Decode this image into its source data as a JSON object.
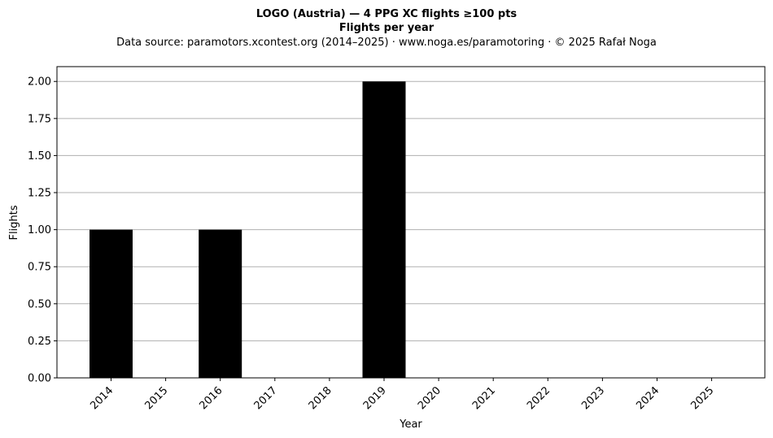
{
  "chart_data": {
    "type": "bar",
    "title": "LOGO (Austria)  —  4 PPG XC flights ≥100 pts",
    "title2": "Flights per year",
    "subtitle": "Data source: paramotors.xcontest.org (2014–2025)  ·  www.noga.es/paramotoring  ·  © 2025 Rafał Noga",
    "xlabel": "Year",
    "ylabel": "Flights",
    "categories": [
      "2014",
      "2015",
      "2016",
      "2017",
      "2018",
      "2019",
      "2020",
      "2021",
      "2022",
      "2023",
      "2024",
      "2025"
    ],
    "values": [
      1,
      0,
      1,
      0,
      0,
      2,
      0,
      0,
      0,
      0,
      0,
      0
    ],
    "ylim": [
      0,
      2.1
    ],
    "yticks": [
      "0.00",
      "0.25",
      "0.50",
      "0.75",
      "1.00",
      "1.25",
      "1.50",
      "1.75",
      "2.00"
    ],
    "grid": "y",
    "legend": "none",
    "bar_color": "#000000",
    "grid_color": "#b0b0b0"
  }
}
